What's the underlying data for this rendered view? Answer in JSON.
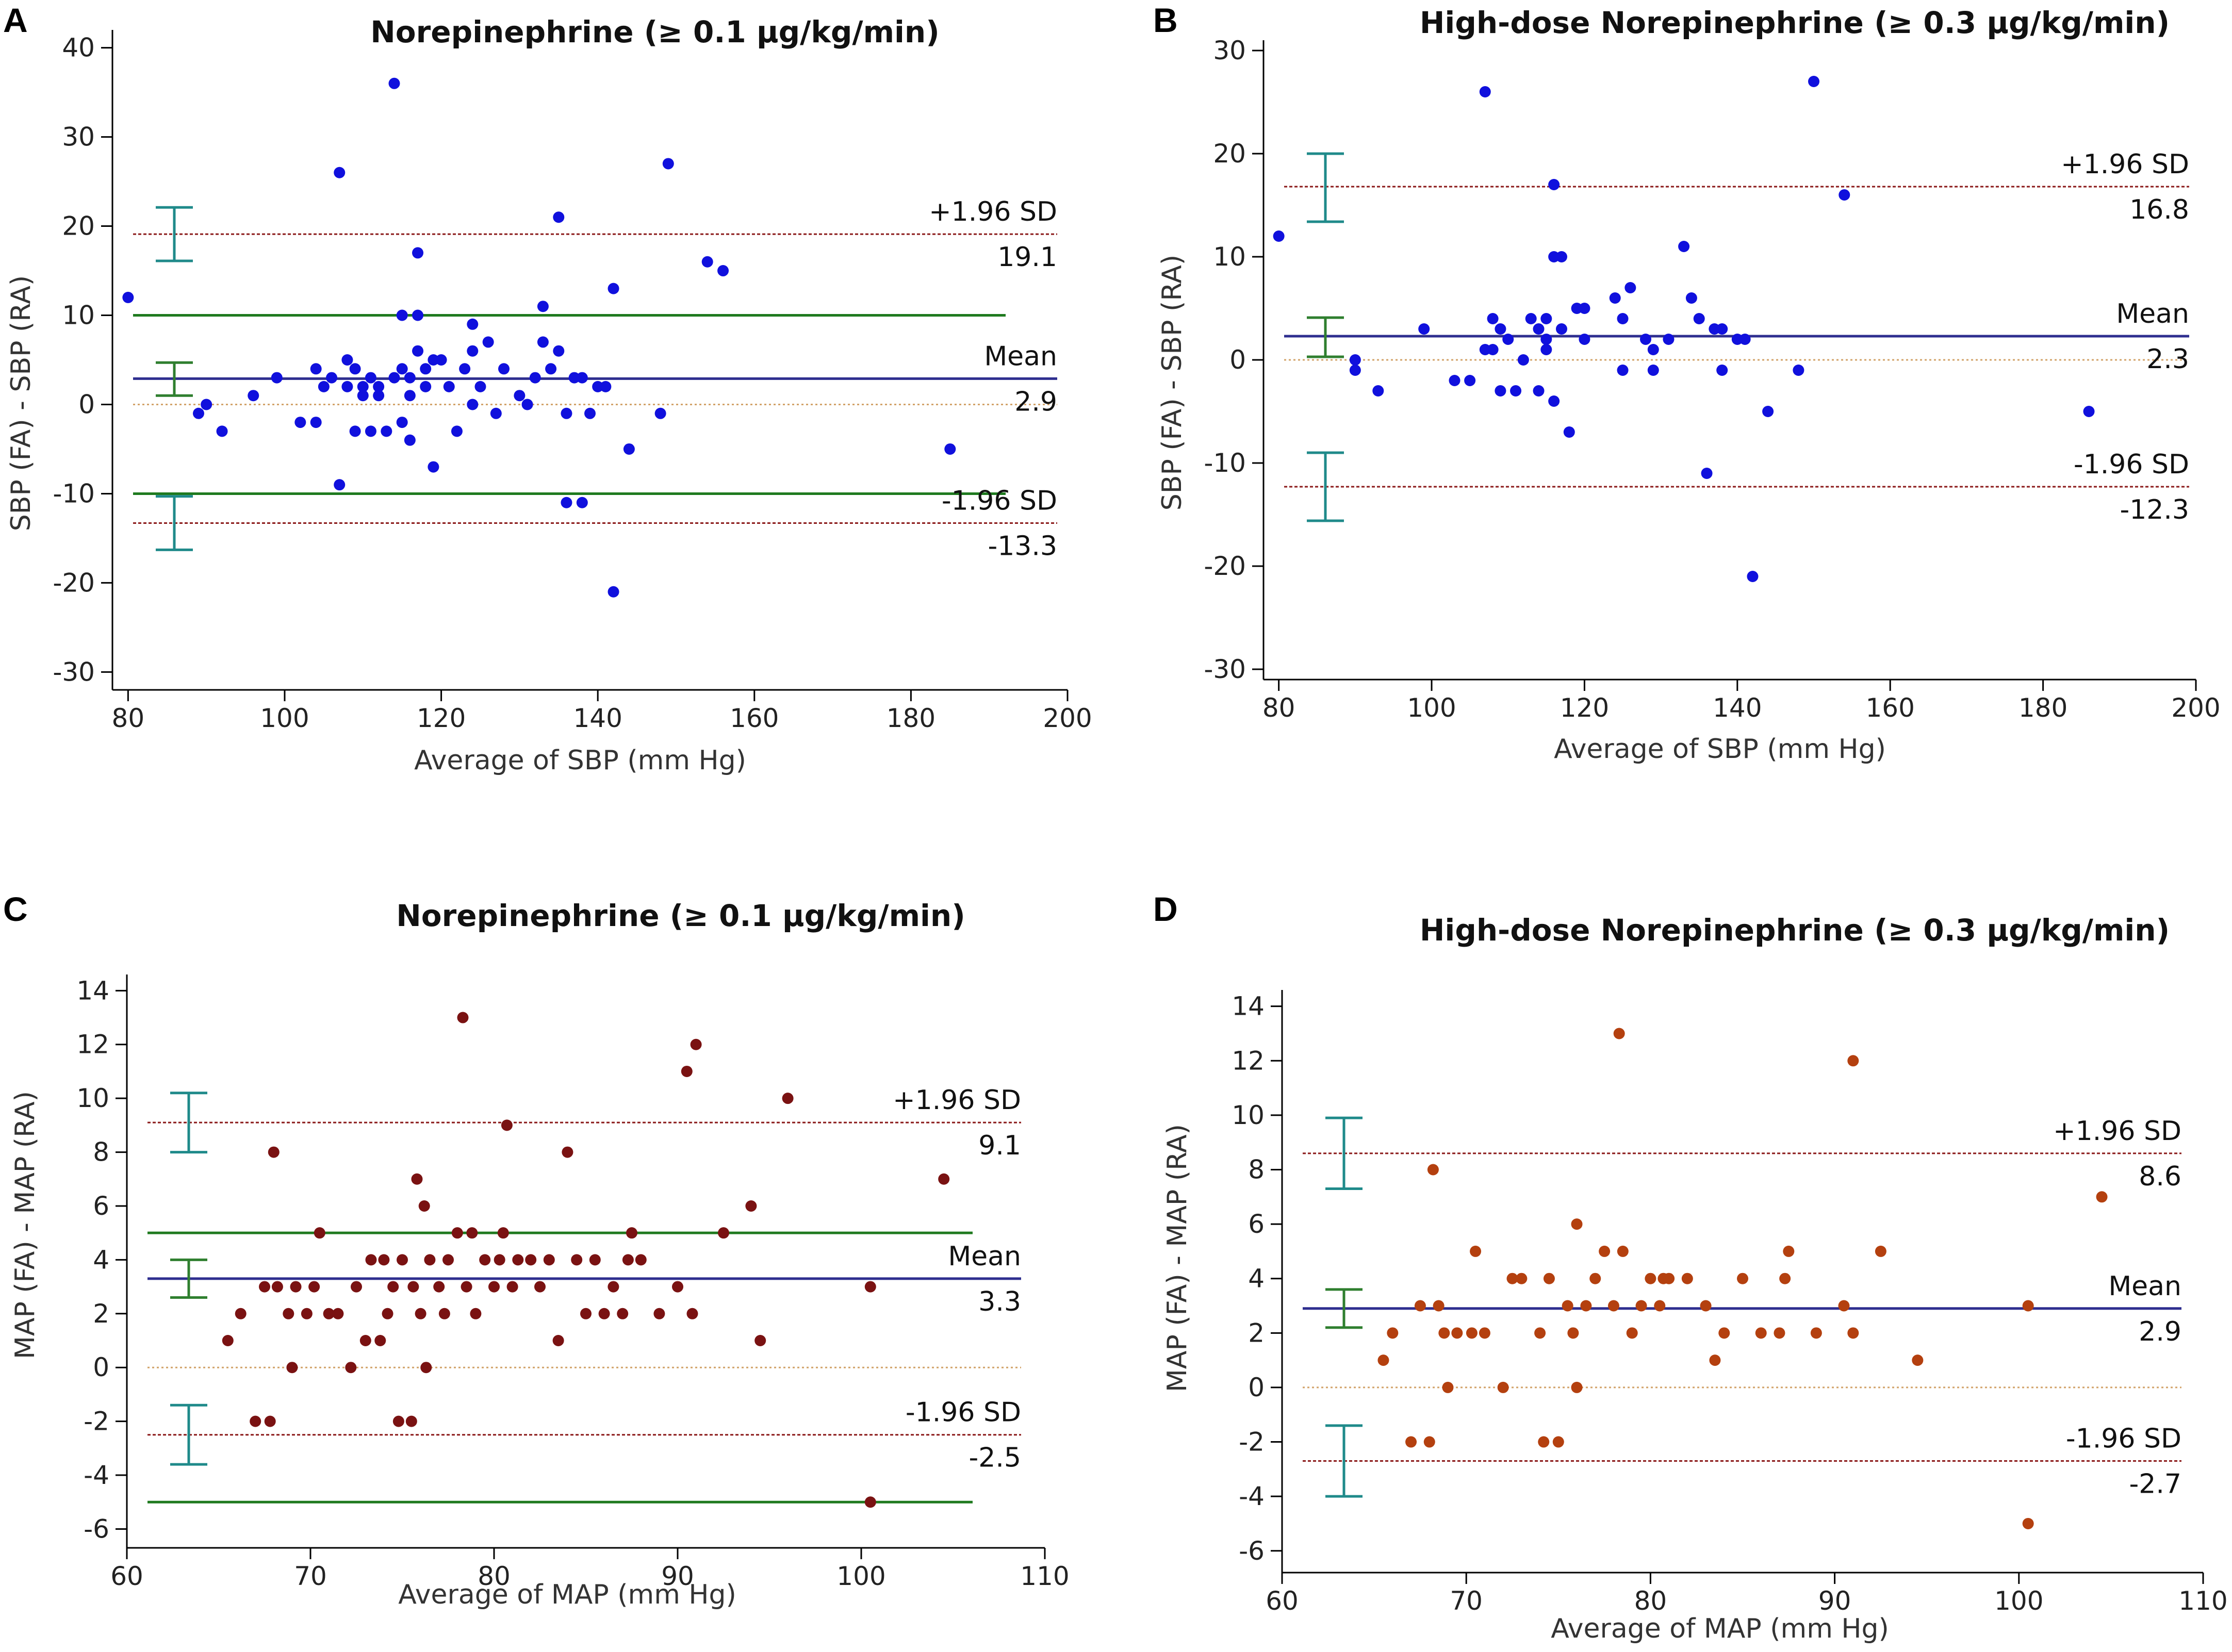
{
  "figure": {
    "panels": [
      "A",
      "B",
      "C",
      "D"
    ]
  },
  "colors": {
    "axis": "#000000",
    "mean_line": "#2e2e8f",
    "sd_line": "#8b1a1a",
    "zero_line": "#d2a36a",
    "green_line": "#1f7a1f",
    "ci_teal": "#1f8a8a",
    "ci_green": "#2f7f2f",
    "point_blue": "#1010dd",
    "point_darkred": "#7a1212",
    "point_orange": "#b4400f"
  },
  "chart_data": [
    {
      "panel": "A",
      "type": "scatter",
      "title": "Norepinephrine (≥ 0.1    μg/kg/min)",
      "xlabel": "Average of SBP  (mm Hg)",
      "ylabel": "SBP (FA) - SBP (RA)",
      "xlim": [
        78,
        200
      ],
      "ylim": [
        -32,
        42
      ],
      "xticks": [
        80,
        100,
        120,
        140,
        160,
        180,
        200
      ],
      "yticks": [
        -30,
        -20,
        -10,
        0,
        10,
        20,
        30,
        40
      ],
      "point_color": "point_blue",
      "points": [
        [
          80,
          12
        ],
        [
          89,
          -1
        ],
        [
          90,
          0
        ],
        [
          92,
          -3
        ],
        [
          96,
          1
        ],
        [
          99,
          3
        ],
        [
          102,
          -2
        ],
        [
          104,
          -2
        ],
        [
          104,
          4
        ],
        [
          105,
          2
        ],
        [
          106,
          3
        ],
        [
          107,
          26
        ],
        [
          107,
          -9
        ],
        [
          108,
          5
        ],
        [
          108,
          2
        ],
        [
          109,
          -3
        ],
        [
          109,
          4
        ],
        [
          110,
          2
        ],
        [
          110,
          1
        ],
        [
          111,
          3
        ],
        [
          111,
          -3
        ],
        [
          112,
          2
        ],
        [
          112,
          1
        ],
        [
          113,
          -3
        ],
        [
          114,
          36
        ],
        [
          114,
          3
        ],
        [
          115,
          4
        ],
        [
          115,
          -2
        ],
        [
          115,
          10
        ],
        [
          116,
          1
        ],
        [
          116,
          -4
        ],
        [
          116,
          3
        ],
        [
          117,
          17
        ],
        [
          117,
          10
        ],
        [
          117,
          6
        ],
        [
          118,
          2
        ],
        [
          118,
          4
        ],
        [
          119,
          -7
        ],
        [
          119,
          5
        ],
        [
          120,
          5
        ],
        [
          121,
          2
        ],
        [
          122,
          -3
        ],
        [
          123,
          4
        ],
        [
          124,
          6
        ],
        [
          124,
          0
        ],
        [
          124,
          9
        ],
        [
          125,
          2
        ],
        [
          126,
          7
        ],
        [
          127,
          -1
        ],
        [
          128,
          4
        ],
        [
          130,
          1
        ],
        [
          131,
          0
        ],
        [
          132,
          3
        ],
        [
          133,
          7
        ],
        [
          133,
          11
        ],
        [
          134,
          4
        ],
        [
          135,
          6
        ],
        [
          135,
          21
        ],
        [
          136,
          -1
        ],
        [
          136,
          -11
        ],
        [
          137,
          3
        ],
        [
          138,
          -11
        ],
        [
          138,
          3
        ],
        [
          139,
          -1
        ],
        [
          140,
          2
        ],
        [
          141,
          2
        ],
        [
          142,
          13
        ],
        [
          142,
          -21
        ],
        [
          144,
          -5
        ],
        [
          148,
          -1
        ],
        [
          149,
          27
        ],
        [
          154,
          16
        ],
        [
          156,
          15
        ],
        [
          185,
          -5
        ]
      ],
      "mean": 2.9,
      "upper": 19.1,
      "lower": -13.3,
      "green_lines": [
        10,
        -10
      ],
      "ci_mean": [
        1.0,
        4.7
      ],
      "ci_upper": [
        16.1,
        22.1
      ],
      "ci_lower": [
        -16.3,
        -10.3
      ],
      "labels": {
        "upper_label": "+1.96 SD",
        "upper_value": "19.1",
        "mean_label": "Mean",
        "mean_value": "2.9",
        "lower_label": "-1.96 SD",
        "lower_value": "-13.3"
      }
    },
    {
      "panel": "B",
      "type": "scatter",
      "title": "High-dose Norepinephrine (≥ 0.3    μg/kg/min)",
      "xlabel": "Average of SBP  (mm Hg)",
      "ylabel": "SBP (FA) - SBP (RA)",
      "xlim": [
        78,
        200
      ],
      "ylim": [
        -31,
        31
      ],
      "xticks": [
        80,
        100,
        120,
        140,
        160,
        180,
        200
      ],
      "yticks": [
        -30,
        -20,
        -10,
        0,
        10,
        20,
        30
      ],
      "point_color": "point_blue",
      "points": [
        [
          80,
          12
        ],
        [
          90,
          -1
        ],
        [
          90,
          0
        ],
        [
          93,
          -3
        ],
        [
          99,
          3
        ],
        [
          103,
          -2
        ],
        [
          105,
          -2
        ],
        [
          107,
          26
        ],
        [
          107,
          1
        ],
        [
          108,
          1
        ],
        [
          108,
          4
        ],
        [
          109,
          3
        ],
        [
          109,
          -3
        ],
        [
          110,
          2
        ],
        [
          111,
          -3
        ],
        [
          112,
          0
        ],
        [
          113,
          4
        ],
        [
          114,
          3
        ],
        [
          114,
          -3
        ],
        [
          115,
          4
        ],
        [
          115,
          2
        ],
        [
          115,
          1
        ],
        [
          116,
          -4
        ],
        [
          116,
          17
        ],
        [
          116,
          10
        ],
        [
          117,
          10
        ],
        [
          117,
          3
        ],
        [
          118,
          -7
        ],
        [
          119,
          5
        ],
        [
          120,
          5
        ],
        [
          120,
          2
        ],
        [
          124,
          6
        ],
        [
          125,
          -1
        ],
        [
          125,
          4
        ],
        [
          126,
          7
        ],
        [
          128,
          2
        ],
        [
          129,
          1
        ],
        [
          129,
          -1
        ],
        [
          131,
          2
        ],
        [
          133,
          11
        ],
        [
          134,
          6
        ],
        [
          135,
          4
        ],
        [
          136,
          -11
        ],
        [
          137,
          3
        ],
        [
          138,
          3
        ],
        [
          138,
          -1
        ],
        [
          140,
          2
        ],
        [
          141,
          2
        ],
        [
          142,
          -21
        ],
        [
          144,
          -5
        ],
        [
          148,
          -1
        ],
        [
          150,
          27
        ],
        [
          154,
          16
        ],
        [
          186,
          -5
        ]
      ],
      "mean": 2.3,
      "upper": 16.8,
      "lower": -12.3,
      "green_lines": [],
      "ci_mean": [
        0.3,
        4.1
      ],
      "ci_upper": [
        13.4,
        20.0
      ],
      "ci_lower": [
        -15.6,
        -9.0
      ],
      "labels": {
        "upper_label": "+1.96 SD",
        "upper_value": "16.8",
        "mean_label": "Mean",
        "mean_value": "2.3",
        "lower_label": "-1.96 SD",
        "lower_value": "-12.3"
      }
    },
    {
      "panel": "C",
      "type": "scatter",
      "title": "Norepinephrine (≥ 0.1    μg/kg/min)",
      "xlabel": "Average of  MAP  (mm Hg)",
      "ylabel": "MAP (FA) - MAP (RA)",
      "xlim": [
        60,
        110
      ],
      "ylim": [
        -6.7,
        14.6
      ],
      "xticks": [
        60,
        70,
        80,
        90,
        100,
        110
      ],
      "yticks": [
        -6,
        -4,
        -2,
        0,
        2,
        4,
        6,
        8,
        10,
        12,
        14
      ],
      "point_color": "point_darkred",
      "points": [
        [
          65.5,
          1
        ],
        [
          66.2,
          2
        ],
        [
          67,
          -2
        ],
        [
          67.5,
          3
        ],
        [
          67.8,
          -2
        ],
        [
          68,
          8
        ],
        [
          68.2,
          3
        ],
        [
          68.8,
          2
        ],
        [
          69,
          0
        ],
        [
          69.2,
          3
        ],
        [
          69.8,
          2
        ],
        [
          70.2,
          3
        ],
        [
          70.5,
          5
        ],
        [
          71,
          2
        ],
        [
          71.5,
          2
        ],
        [
          72.2,
          0
        ],
        [
          72.5,
          3
        ],
        [
          73,
          1
        ],
        [
          73.3,
          4
        ],
        [
          73.8,
          1
        ],
        [
          74,
          4
        ],
        [
          74.2,
          2
        ],
        [
          74.5,
          3
        ],
        [
          74.8,
          -2
        ],
        [
          75,
          4
        ],
        [
          75.5,
          -2
        ],
        [
          75.6,
          3
        ],
        [
          75.8,
          7
        ],
        [
          76,
          2
        ],
        [
          76.2,
          6
        ],
        [
          76.3,
          0
        ],
        [
          76.5,
          4
        ],
        [
          77,
          3
        ],
        [
          77.3,
          2
        ],
        [
          77.5,
          4
        ],
        [
          78,
          5
        ],
        [
          78.3,
          13
        ],
        [
          78.5,
          3
        ],
        [
          78.8,
          5
        ],
        [
          79,
          2
        ],
        [
          79.5,
          4
        ],
        [
          80,
          3
        ],
        [
          80.3,
          4
        ],
        [
          80.5,
          5
        ],
        [
          80.7,
          9
        ],
        [
          81,
          3
        ],
        [
          81.3,
          4
        ],
        [
          82,
          4
        ],
        [
          82.5,
          3
        ],
        [
          83,
          4
        ],
        [
          83.5,
          1
        ],
        [
          84,
          8
        ],
        [
          84.5,
          4
        ],
        [
          85,
          2
        ],
        [
          85.5,
          4
        ],
        [
          86,
          2
        ],
        [
          86.5,
          3
        ],
        [
          87,
          2
        ],
        [
          87.3,
          4
        ],
        [
          87.5,
          5
        ],
        [
          88,
          4
        ],
        [
          89,
          2
        ],
        [
          90,
          3
        ],
        [
          90.5,
          11
        ],
        [
          90.8,
          2
        ],
        [
          91,
          12
        ],
        [
          92.5,
          5
        ],
        [
          94,
          6
        ],
        [
          94.5,
          1
        ],
        [
          96,
          10
        ],
        [
          100.5,
          3
        ],
        [
          100.5,
          -5
        ],
        [
          104.5,
          7
        ]
      ],
      "mean": 3.3,
      "upper": 9.1,
      "lower": -2.5,
      "green_lines": [
        5,
        -5
      ],
      "ci_mean": [
        2.6,
        4.0
      ],
      "ci_upper": [
        8.0,
        10.2
      ],
      "ci_lower": [
        -3.6,
        -1.4
      ],
      "labels": {
        "upper_label": "+1.96 SD",
        "upper_value": "9.1",
        "mean_label": "Mean",
        "mean_value": "3.3",
        "lower_label": "-1.96 SD",
        "lower_value": "-2.5"
      }
    },
    {
      "panel": "D",
      "type": "scatter",
      "title": "High-dose Norepinephrine (≥ 0.3    μg/kg/min)",
      "xlabel": "Average of MAP (mm Hg)",
      "ylabel": "MAP (FA) - MAP (RA)",
      "xlim": [
        60,
        110
      ],
      "ylim": [
        -6.8,
        14.6
      ],
      "xticks": [
        60,
        70,
        80,
        90,
        100,
        110
      ],
      "yticks": [
        -6,
        -4,
        -2,
        0,
        2,
        4,
        6,
        8,
        10,
        12,
        14
      ],
      "point_color": "point_orange",
      "points": [
        [
          65.5,
          1
        ],
        [
          66,
          2
        ],
        [
          67,
          -2
        ],
        [
          67.5,
          3
        ],
        [
          68,
          -2
        ],
        [
          68.2,
          8
        ],
        [
          68.5,
          3
        ],
        [
          68.8,
          2
        ],
        [
          69,
          0
        ],
        [
          69.5,
          2
        ],
        [
          70.3,
          2
        ],
        [
          70.5,
          5
        ],
        [
          71,
          2
        ],
        [
          72,
          0
        ],
        [
          72.5,
          4
        ],
        [
          73,
          4
        ],
        [
          74,
          2
        ],
        [
          74.2,
          -2
        ],
        [
          74.5,
          4
        ],
        [
          75,
          -2
        ],
        [
          75.5,
          3
        ],
        [
          75.8,
          2
        ],
        [
          76,
          6
        ],
        [
          76,
          0
        ],
        [
          76.5,
          3
        ],
        [
          77,
          4
        ],
        [
          77.5,
          5
        ],
        [
          78,
          3
        ],
        [
          78.3,
          13
        ],
        [
          78.5,
          5
        ],
        [
          79,
          2
        ],
        [
          79.5,
          3
        ],
        [
          80,
          4
        ],
        [
          80.5,
          3
        ],
        [
          80.7,
          4
        ],
        [
          81,
          4
        ],
        [
          82,
          4
        ],
        [
          83,
          3
        ],
        [
          83.5,
          1
        ],
        [
          84,
          2
        ],
        [
          85,
          4
        ],
        [
          86,
          2
        ],
        [
          87,
          2
        ],
        [
          87.3,
          4
        ],
        [
          87.5,
          5
        ],
        [
          89,
          2
        ],
        [
          90.5,
          3
        ],
        [
          91,
          2
        ],
        [
          91,
          12
        ],
        [
          92.5,
          5
        ],
        [
          94.5,
          1
        ],
        [
          100.5,
          3
        ],
        [
          100.5,
          -5
        ],
        [
          104.5,
          7
        ]
      ],
      "mean": 2.9,
      "upper": 8.6,
      "lower": -2.7,
      "green_lines": [],
      "ci_mean": [
        2.2,
        3.6
      ],
      "ci_upper": [
        7.3,
        9.9
      ],
      "ci_lower": [
        -4.0,
        -1.4
      ],
      "labels": {
        "upper_label": "+1.96 SD",
        "upper_value": "8.6",
        "mean_label": "Mean",
        "mean_value": "2.9",
        "lower_label": "-1.96 SD",
        "lower_value": "-2.7"
      }
    }
  ]
}
